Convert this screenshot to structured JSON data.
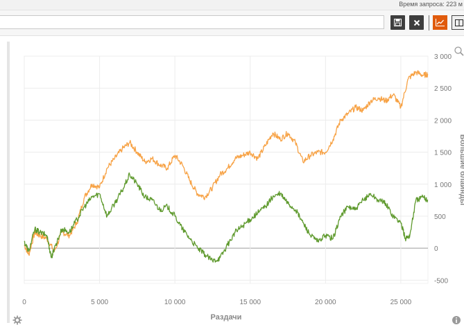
{
  "header": {
    "query_time": "Время запроса: 223 м"
  },
  "toolbar": {
    "query_value": "",
    "save_icon": "floppy-disk-icon",
    "close_icon": "close-x-icon",
    "chart_view_icon": "line-chart-icon",
    "table_view_icon": "columns-icon"
  },
  "colors": {
    "orange_series": "#f7a245",
    "green_series": "#5f9a2e",
    "accent": "#e05a0c"
  },
  "chart_data": {
    "type": "line",
    "title": "",
    "xlabel": "Раздачи",
    "ylabel": "Большие блайнды",
    "xlim": [
      0,
      26800
    ],
    "ylim": [
      -550,
      3000
    ],
    "x_ticks": [
      0,
      5000,
      10000,
      15000,
      20000,
      25000
    ],
    "x_tick_labels": [
      "0",
      "5 000",
      "10 000",
      "15 000",
      "20 000",
      "25 000"
    ],
    "y_ticks": [
      -500,
      0,
      500,
      1000,
      1500,
      2000,
      2500,
      3000
    ],
    "y_tick_labels": [
      "-500",
      "0",
      "500",
      "1 000",
      "1 500",
      "2 000",
      "2 500",
      "3 000"
    ],
    "grid": true,
    "legend": "none",
    "series": [
      {
        "color": "#f7a245",
        "x": [
          0,
          300,
          700,
          1000,
          1500,
          2000,
          2500,
          3000,
          3500,
          4000,
          4500,
          5000,
          5500,
          6000,
          6500,
          7000,
          7500,
          8000,
          8500,
          9000,
          9500,
          10000,
          10500,
          11000,
          11500,
          12000,
          12500,
          13000,
          13500,
          14000,
          14500,
          15000,
          15500,
          16000,
          16500,
          17000,
          17500,
          18000,
          18500,
          19000,
          19500,
          20000,
          20500,
          21000,
          21500,
          22000,
          22500,
          23000,
          23500,
          24000,
          24500,
          25000,
          25500,
          26000,
          26500,
          26800
        ],
        "values": [
          50,
          -100,
          250,
          200,
          150,
          -50,
          250,
          200,
          400,
          800,
          1000,
          950,
          1250,
          1400,
          1550,
          1650,
          1500,
          1350,
          1400,
          1300,
          1250,
          1450,
          1300,
          1050,
          850,
          800,
          950,
          1150,
          1250,
          1400,
          1450,
          1500,
          1400,
          1600,
          1800,
          1700,
          1800,
          1650,
          1350,
          1450,
          1500,
          1500,
          1700,
          2000,
          2100,
          2200,
          2150,
          2300,
          2350,
          2300,
          2400,
          2200,
          2650,
          2750,
          2700,
          2720
        ]
      },
      {
        "color": "#5f9a2e",
        "x": [
          0,
          300,
          700,
          1000,
          1500,
          1800,
          2000,
          2500,
          3000,
          3500,
          4000,
          4500,
          5000,
          5500,
          6000,
          6500,
          7000,
          7500,
          8000,
          8500,
          9000,
          9500,
          10000,
          10500,
          11000,
          11500,
          12000,
          12500,
          13000,
          13500,
          14000,
          14500,
          15000,
          15500,
          16000,
          16500,
          17000,
          17500,
          18000,
          18500,
          19000,
          19500,
          20000,
          20500,
          21000,
          21500,
          22000,
          22500,
          23000,
          23500,
          24000,
          24500,
          25000,
          25300,
          25600,
          26000,
          26500,
          26800
        ],
        "values": [
          100,
          -50,
          300,
          250,
          200,
          -150,
          0,
          300,
          250,
          450,
          650,
          800,
          850,
          500,
          700,
          900,
          1150,
          1000,
          800,
          750,
          600,
          650,
          500,
          300,
          150,
          0,
          -100,
          -200,
          -150,
          50,
          250,
          350,
          450,
          550,
          650,
          800,
          850,
          700,
          600,
          400,
          200,
          100,
          200,
          150,
          500,
          650,
          600,
          750,
          850,
          750,
          700,
          500,
          400,
          150,
          200,
          750,
          800,
          750
        ]
      }
    ]
  }
}
